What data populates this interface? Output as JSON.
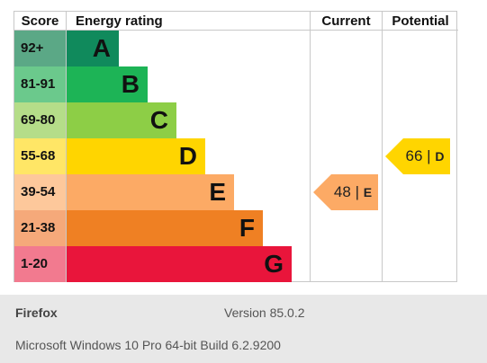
{
  "chart_data": {
    "type": "bar",
    "headers": {
      "score": "Score",
      "rating": "Energy rating",
      "current": "Current",
      "potential": "Potential"
    },
    "bands": [
      {
        "score": "92+",
        "letter": "A",
        "color": "#108a5c",
        "score_color": "#5ba886"
      },
      {
        "score": "81-91",
        "letter": "B",
        "color": "#1db456",
        "score_color": "#6bc98c"
      },
      {
        "score": "69-80",
        "letter": "C",
        "color": "#8dce46",
        "score_color": "#b5dd89"
      },
      {
        "score": "55-68",
        "letter": "D",
        "color": "#ffd500",
        "score_color": "#ffe666"
      },
      {
        "score": "39-54",
        "letter": "E",
        "color": "#fcaa65",
        "score_color": "#fdc89b"
      },
      {
        "score": "21-38",
        "letter": "F",
        "color": "#ef8023",
        "score_color": "#f5a97a"
      },
      {
        "score": "1-20",
        "letter": "G",
        "color": "#e9153b",
        "score_color": "#f27a8f"
      }
    ],
    "current": {
      "value": 48,
      "band": "E",
      "color": "#fcaa65"
    },
    "potential": {
      "value": 66,
      "band": "D",
      "color": "#ffd500"
    }
  },
  "footer": {
    "browser_name": "Firefox",
    "browser_version": "Version 85.0.2",
    "os_info": "Microsoft Windows 10 Pro 64-bit Build 6.2.9200"
  }
}
